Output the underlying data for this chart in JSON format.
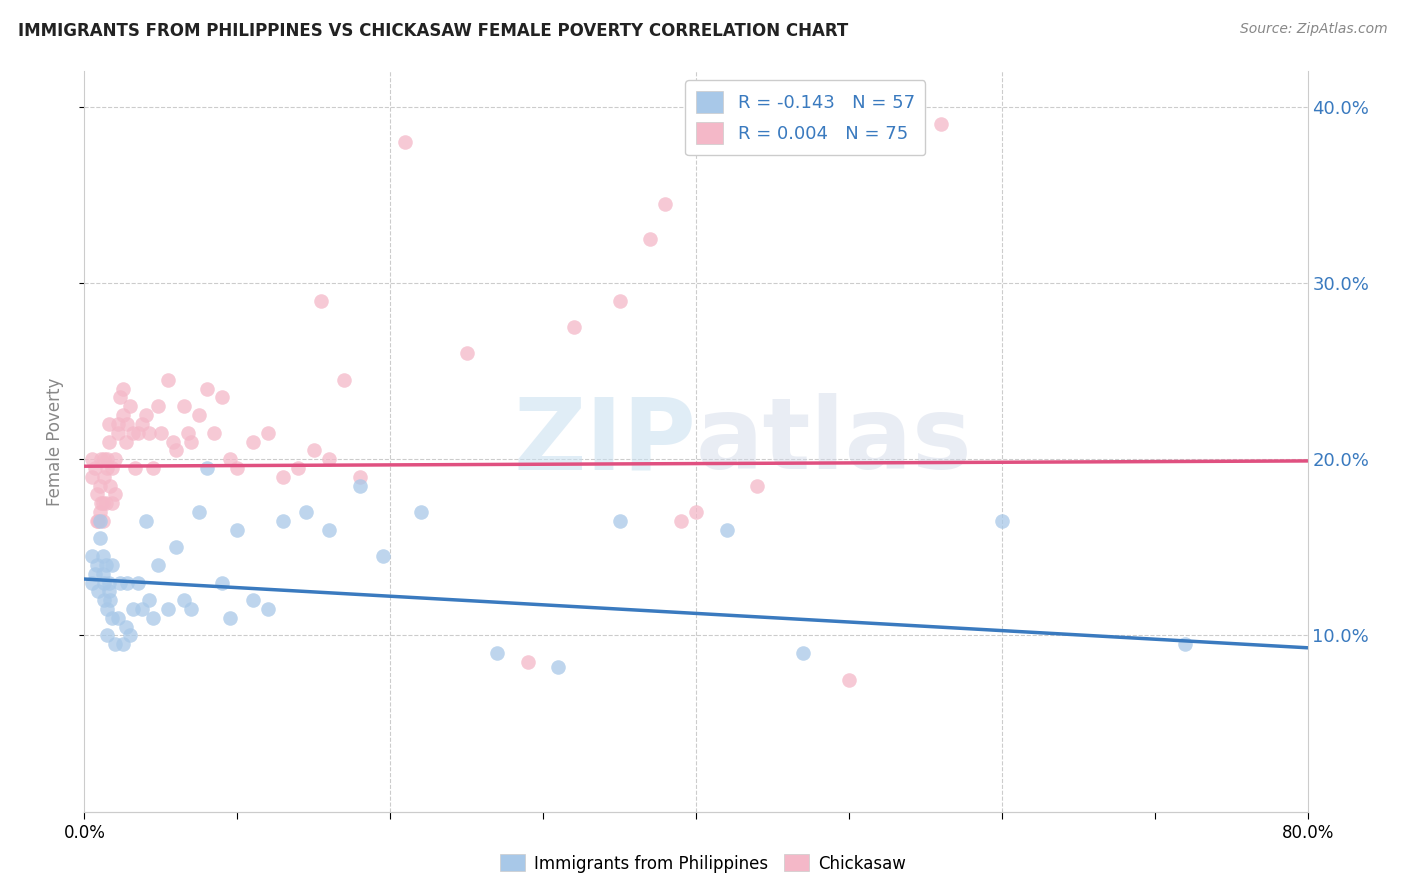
{
  "title": "IMMIGRANTS FROM PHILIPPINES VS CHICKASAW FEMALE POVERTY CORRELATION CHART",
  "source": "Source: ZipAtlas.com",
  "ylabel": "Female Poverty",
  "legend_label1": "Immigrants from Philippines",
  "legend_label2": "Chickasaw",
  "R1": -0.143,
  "N1": 57,
  "R2": 0.004,
  "N2": 75,
  "color_blue": "#a8c8e8",
  "color_pink": "#f4b8c8",
  "color_blue_line": "#3a7abf",
  "color_pink_line": "#e05080",
  "watermark_zip": "ZIP",
  "watermark_atlas": "atlas",
  "xlim": [
    0.0,
    0.8
  ],
  "ylim": [
    0.0,
    0.42
  ],
  "yticks": [
    0.1,
    0.2,
    0.3,
    0.4
  ],
  "ytick_labels": [
    "10.0%",
    "20.0%",
    "30.0%",
    "40.0%"
  ],
  "blue_trend_x": [
    0.0,
    0.8
  ],
  "blue_trend_y": [
    0.132,
    0.093
  ],
  "pink_trend_x": [
    0.0,
    0.8
  ],
  "pink_trend_y": [
    0.196,
    0.199
  ],
  "blue_points_x": [
    0.005,
    0.005,
    0.007,
    0.008,
    0.009,
    0.01,
    0.01,
    0.012,
    0.012,
    0.013,
    0.013,
    0.014,
    0.015,
    0.015,
    0.016,
    0.016,
    0.017,
    0.018,
    0.018,
    0.02,
    0.022,
    0.023,
    0.025,
    0.027,
    0.028,
    0.03,
    0.032,
    0.035,
    0.038,
    0.04,
    0.042,
    0.045,
    0.048,
    0.055,
    0.06,
    0.065,
    0.07,
    0.075,
    0.08,
    0.09,
    0.095,
    0.1,
    0.11,
    0.12,
    0.13,
    0.145,
    0.16,
    0.18,
    0.195,
    0.22,
    0.27,
    0.31,
    0.35,
    0.42,
    0.47,
    0.6,
    0.72
  ],
  "blue_points_y": [
    0.13,
    0.145,
    0.135,
    0.14,
    0.125,
    0.155,
    0.165,
    0.135,
    0.145,
    0.12,
    0.13,
    0.14,
    0.1,
    0.115,
    0.125,
    0.13,
    0.12,
    0.11,
    0.14,
    0.095,
    0.11,
    0.13,
    0.095,
    0.105,
    0.13,
    0.1,
    0.115,
    0.13,
    0.115,
    0.165,
    0.12,
    0.11,
    0.14,
    0.115,
    0.15,
    0.12,
    0.115,
    0.17,
    0.195,
    0.13,
    0.11,
    0.16,
    0.12,
    0.115,
    0.165,
    0.17,
    0.16,
    0.185,
    0.145,
    0.17,
    0.09,
    0.082,
    0.165,
    0.16,
    0.09,
    0.165,
    0.095
  ],
  "pink_points_x": [
    0.005,
    0.005,
    0.007,
    0.008,
    0.008,
    0.009,
    0.01,
    0.01,
    0.011,
    0.011,
    0.012,
    0.012,
    0.013,
    0.013,
    0.014,
    0.015,
    0.015,
    0.016,
    0.016,
    0.017,
    0.018,
    0.018,
    0.02,
    0.02,
    0.022,
    0.022,
    0.023,
    0.025,
    0.025,
    0.027,
    0.028,
    0.03,
    0.032,
    0.033,
    0.035,
    0.038,
    0.04,
    0.042,
    0.045,
    0.048,
    0.05,
    0.055,
    0.058,
    0.06,
    0.065,
    0.068,
    0.07,
    0.075,
    0.08,
    0.085,
    0.09,
    0.095,
    0.1,
    0.11,
    0.12,
    0.13,
    0.14,
    0.15,
    0.155,
    0.16,
    0.17,
    0.18,
    0.21,
    0.25,
    0.29,
    0.32,
    0.35,
    0.37,
    0.38,
    0.39,
    0.4,
    0.42,
    0.44,
    0.5,
    0.56
  ],
  "pink_points_y": [
    0.19,
    0.2,
    0.195,
    0.165,
    0.18,
    0.165,
    0.17,
    0.185,
    0.175,
    0.2,
    0.165,
    0.175,
    0.19,
    0.2,
    0.175,
    0.2,
    0.195,
    0.21,
    0.22,
    0.185,
    0.175,
    0.195,
    0.18,
    0.2,
    0.215,
    0.22,
    0.235,
    0.225,
    0.24,
    0.21,
    0.22,
    0.23,
    0.215,
    0.195,
    0.215,
    0.22,
    0.225,
    0.215,
    0.195,
    0.23,
    0.215,
    0.245,
    0.21,
    0.205,
    0.23,
    0.215,
    0.21,
    0.225,
    0.24,
    0.215,
    0.235,
    0.2,
    0.195,
    0.21,
    0.215,
    0.19,
    0.195,
    0.205,
    0.29,
    0.2,
    0.245,
    0.19,
    0.38,
    0.26,
    0.085,
    0.275,
    0.29,
    0.325,
    0.345,
    0.165,
    0.17,
    0.4,
    0.185,
    0.075,
    0.39
  ]
}
